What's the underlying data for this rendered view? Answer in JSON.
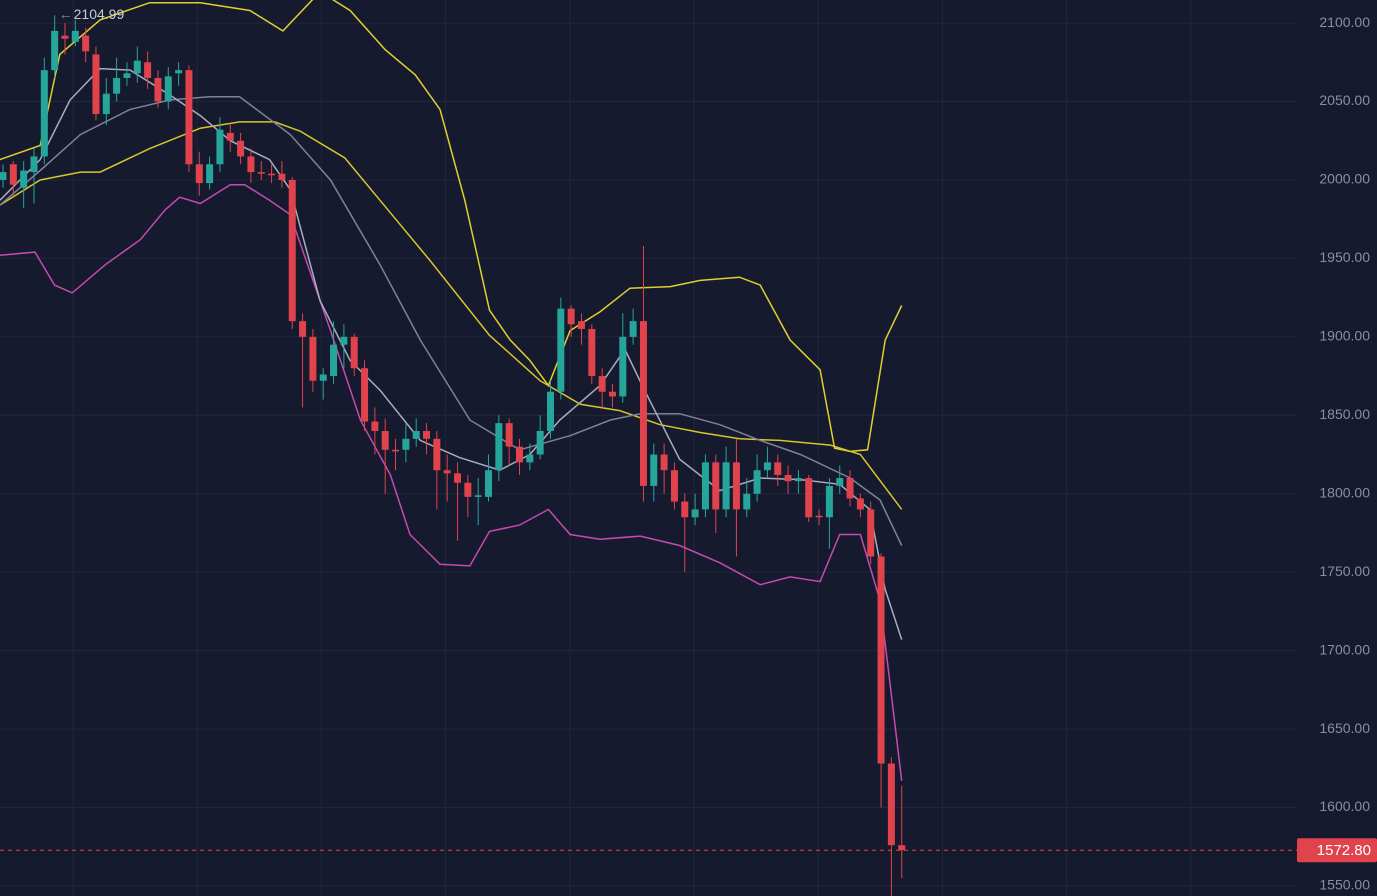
{
  "chart_data": {
    "type": "candlestick",
    "categories": [
      null,
      null,
      null,
      null,
      null,
      null,
      null,
      null,
      null,
      null,
      null,
      null,
      null,
      null,
      null,
      null,
      null,
      null,
      null,
      null,
      null,
      null,
      null,
      null,
      null,
      null,
      null,
      null,
      null,
      null,
      null,
      null,
      null,
      null,
      null,
      null,
      null,
      null,
      null,
      null,
      null,
      null,
      null,
      null,
      null,
      null,
      null,
      null,
      null,
      null,
      null,
      null,
      null,
      null,
      null,
      null,
      null,
      null,
      null,
      null,
      null,
      null,
      null,
      null,
      null,
      null,
      null,
      null,
      null,
      null,
      null,
      null,
      null,
      null,
      null,
      null,
      null,
      null,
      null,
      null,
      null,
      null,
      null,
      null,
      null,
      null,
      null,
      null
    ],
    "open": [
      2000,
      2010,
      1995,
      2005,
      2015,
      2070,
      2092,
      2088,
      2092,
      2080,
      2042,
      2055,
      2065,
      2068,
      2075,
      2065,
      2050,
      2068,
      2070,
      2010,
      1998,
      2010,
      2030,
      2025,
      2015,
      2005,
      2004,
      2004,
      2000,
      1910,
      1900,
      1872,
      1875,
      1895,
      1900,
      1880,
      1846,
      1840,
      1828,
      1828,
      1835,
      1840,
      1835,
      1815,
      1813,
      1807,
      1798,
      1798,
      1815,
      1845,
      1830,
      1820,
      1825,
      1840,
      1865,
      1918,
      1910,
      1905,
      1875,
      1865,
      1862,
      1900,
      1910,
      1805,
      1825,
      1815,
      1795,
      1785,
      1790,
      1820,
      1790,
      1820,
      1790,
      1800,
      1815,
      1820,
      1812,
      1808,
      1810,
      1786,
      1785,
      1805,
      1810,
      1797,
      1790,
      1760,
      1628,
      1576
    ],
    "high": [
      2010,
      2012,
      2012,
      2020,
      2078,
      2104.99,
      2100,
      2102,
      2097,
      2085,
      2065,
      2078,
      2075,
      2085,
      2082,
      2070,
      2072,
      2075,
      2073,
      2018,
      2015,
      2040,
      2036,
      2030,
      2020,
      2012,
      2010,
      2012,
      2002,
      1915,
      1905,
      1880,
      1910,
      1908,
      1902,
      1885,
      1855,
      1848,
      1835,
      1845,
      1848,
      1845,
      1840,
      1825,
      1820,
      1812,
      1810,
      1825,
      1850,
      1848,
      1835,
      1832,
      1850,
      1872,
      1925,
      1920,
      1915,
      1908,
      1880,
      1870,
      1915,
      1918,
      1958,
      1832,
      1832,
      1820,
      1800,
      1800,
      1825,
      1825,
      1830,
      1835,
      1810,
      1825,
      1830,
      1825,
      1818,
      1815,
      1812,
      1790,
      1810,
      1818,
      1815,
      1800,
      1795,
      1762,
      1632,
      1614
    ],
    "low": [
      1995,
      1990,
      1982,
      1985,
      2010,
      2065,
      2080,
      2085,
      2075,
      2038,
      2035,
      2050,
      2060,
      2062,
      2058,
      2046,
      2045,
      2060,
      2005,
      1990,
      1994,
      2005,
      2018,
      2010,
      1998,
      2000,
      1998,
      1995,
      1905,
      1855,
      1865,
      1860,
      1870,
      1880,
      1875,
      1840,
      1825,
      1800,
      1815,
      1820,
      1830,
      1825,
      1790,
      1795,
      1770,
      1785,
      1780,
      1795,
      1808,
      1818,
      1812,
      1815,
      1822,
      1835,
      1860,
      1900,
      1895,
      1870,
      1855,
      1855,
      1858,
      1895,
      1795,
      1795,
      1800,
      1790,
      1750,
      1780,
      1785,
      1775,
      1785,
      1760,
      1785,
      1795,
      1810,
      1805,
      1800,
      1800,
      1782,
      1780,
      1765,
      1800,
      1792,
      1785,
      1755,
      1600,
      1543,
      1555
    ],
    "close": [
      2005,
      1997,
      2006,
      2015,
      2070,
      2095,
      2090,
      2095,
      2082,
      2042,
      2055,
      2065,
      2068,
      2076,
      2065,
      2050,
      2066,
      2070,
      2010,
      1998,
      2010,
      2032,
      2025,
      2015,
      2005,
      2004,
      2003,
      2000,
      1910,
      1900,
      1872,
      1876,
      1895,
      1900,
      1880,
      1846,
      1840,
      1828,
      1827,
      1835,
      1840,
      1835,
      1815,
      1813,
      1807,
      1798,
      1799,
      1815,
      1845,
      1830,
      1820,
      1825,
      1840,
      1865,
      1918,
      1908,
      1905,
      1875,
      1865,
      1862,
      1900,
      1910,
      1805,
      1825,
      1815,
      1795,
      1785,
      1790,
      1820,
      1790,
      1820,
      1790,
      1800,
      1815,
      1820,
      1812,
      1808,
      1810,
      1785,
      1785,
      1805,
      1810,
      1797,
      1790,
      1760,
      1628,
      1576,
      1572.8
    ],
    "up_color": "#26a69a",
    "down_color": "#e0434b",
    "lines": [
      {
        "color": "#e2cf2f",
        "x": [
          -0.3,
          3.6,
          5.5,
          9.4,
          14.2,
          19.1,
          23.9,
          27.1,
          30.7,
          33.6,
          37.0,
          39.9,
          42.3,
          44.7,
          47.1,
          49.1,
          51.0,
          52.8,
          54.9,
          57.8,
          60.7,
          64.6,
          67.5,
          71.3,
          73.3,
          76.2,
          79.1,
          80.5,
          82.0,
          83.7,
          85.4,
          87.0
        ],
        "values": [
          2013,
          2022,
          2080,
          2102,
          2113,
          2113,
          2108,
          2095,
          2120,
          2108,
          2083,
          2067,
          2045,
          1987,
          1917,
          1898,
          1885,
          1869,
          1904,
          1916,
          1931,
          1932,
          1936,
          1938,
          1933,
          1898,
          1879,
          1829,
          1827,
          1828,
          1898,
          1920
        ]
      },
      {
        "color": "#d8c52c",
        "x": [
          -0.3,
          3.6,
          7.5,
          9.4,
          14.2,
          19.1,
          22.9,
          26.3,
          28.8,
          33.1,
          36.5,
          41.3,
          47.1,
          52.0,
          55.9,
          59.7,
          63.6,
          67.5,
          71.3,
          75.2,
          80.1,
          83.0,
          87.0
        ],
        "values": [
          1984,
          2000,
          2005,
          2005,
          2020,
          2033,
          2037,
          2037,
          2031,
          2014,
          1987,
          1949,
          1901,
          1872,
          1857,
          1853,
          1844,
          1839,
          1835,
          1834,
          1831,
          1825,
          1790
        ]
      },
      {
        "color": "#c64ab0",
        "x": [
          -0.3,
          3.1,
          5.0,
          6.7,
          9.9,
          13.3,
          15.7,
          17.1,
          19.1,
          22.0,
          23.4,
          25.8,
          27.8,
          31.7,
          34.6,
          37.5,
          39.4,
          42.3,
          45.2,
          47.1,
          50.0,
          52.8,
          54.9,
          57.8,
          61.7,
          65.5,
          69.4,
          73.3,
          76.2,
          79.1,
          81.0,
          83.0,
          84.9,
          87.0
        ],
        "values": [
          1952,
          1954,
          1933,
          1928,
          1946,
          1962,
          1981,
          1989,
          1985,
          1997,
          1997,
          1987,
          1978,
          1904,
          1847,
          1812,
          1774,
          1755,
          1754,
          1776,
          1780,
          1790,
          1774,
          1771,
          1773,
          1767,
          1756,
          1742,
          1747,
          1744,
          1774,
          1774,
          1732,
          1617
        ]
      },
      {
        "color": "#7d8399",
        "x": [
          -0.3,
          3.6,
          7.5,
          12.3,
          16.2,
          20.0,
          22.9,
          27.8,
          31.7,
          36.5,
          40.4,
          45.2,
          50.0,
          54.9,
          58.8,
          61.7,
          65.5,
          69.4,
          73.3,
          77.2,
          82.0,
          84.9,
          87.0
        ],
        "values": [
          1984,
          2006,
          2029,
          2045,
          2051,
          2053,
          2053,
          2029,
          2000,
          1946,
          1898,
          1847,
          1828,
          1837,
          1847,
          1851,
          1851,
          1844,
          1834,
          1825,
          1810,
          1796,
          1767
        ]
      },
      {
        "color": "#a9adbd",
        "x": [
          -0.3,
          3.6,
          6.5,
          9.4,
          12.3,
          16.2,
          19.1,
          22.0,
          25.8,
          27.8,
          30.7,
          33.6,
          36.5,
          40.4,
          44.2,
          48.1,
          51.0,
          53.9,
          57.8,
          60.2,
          62.1,
          65.5,
          69.4,
          73.3,
          77.2,
          81.0,
          83.9,
          85.4,
          87.0
        ],
        "values": [
          1987,
          2013,
          2051,
          2071,
          2070,
          2054,
          2041,
          2025,
          2013,
          1994,
          1923,
          1885,
          1866,
          1834,
          1823,
          1815,
          1825,
          1847,
          1869,
          1892,
          1866,
          1822,
          1802,
          1810,
          1809,
          1806,
          1790,
          1739,
          1707
        ]
      }
    ],
    "ylim": [
      1543.6,
      2114.7
    ],
    "yticks": [
      {
        "value": 1550,
        "label": "1550.00"
      },
      {
        "value": 1600,
        "label": "1600.00"
      },
      {
        "value": 1650,
        "label": "1650.00"
      },
      {
        "value": 1700,
        "label": "1700.00"
      },
      {
        "value": 1750,
        "label": "1750.00"
      },
      {
        "value": 1800,
        "label": "1800.00"
      },
      {
        "value": 1850,
        "label": "1850.00"
      },
      {
        "value": 1900,
        "label": "1900.00"
      },
      {
        "value": 1950,
        "label": "1950.00"
      },
      {
        "value": 2000,
        "label": "2000.00"
      },
      {
        "value": 2050,
        "label": "2050.00"
      },
      {
        "value": 2100,
        "label": "2100.00"
      }
    ],
    "grid": true,
    "high_marker": 2104.99,
    "last_price": {
      "value": 1572.8,
      "label": "1572.80"
    }
  }
}
